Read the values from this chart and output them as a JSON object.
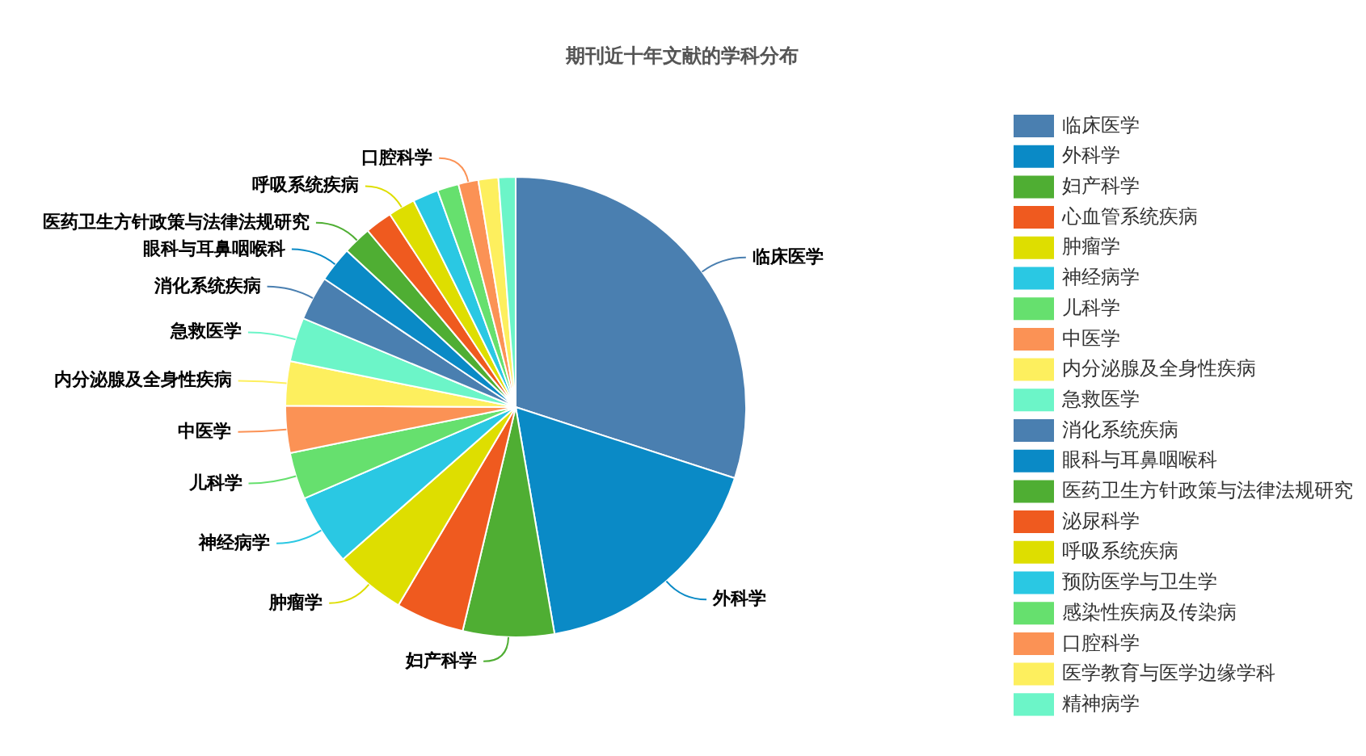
{
  "chart_data": {
    "type": "pie",
    "title": "期刊近十年文献的学科分布",
    "categories": [
      "临床医学",
      "外科学",
      "妇产科学",
      "心血管系统疾病",
      "肿瘤学",
      "神经病学",
      "儿科学",
      "中医学",
      "内分泌腺及全身性疾病",
      "急救医学",
      "消化系统疾病",
      "眼科与耳鼻咽喉科",
      "医药卫生方针政策与法律法规研究",
      "泌尿科学",
      "呼吸系统疾病",
      "预防医学与卫生学",
      "感染性疾病及传染病",
      "口腔科学",
      "医学教育与医学边缘学科",
      "精神病学"
    ],
    "values": [
      30,
      17.3,
      6.4,
      4.8,
      5,
      5,
      3.3,
      3.3,
      3.1,
      3.1,
      3.1,
      2.5,
      2,
      1.9,
      1.9,
      1.8,
      1.5,
      1.4,
      1.4,
      1.2
    ],
    "colors": [
      "#4a7fb0",
      "#0a8ac6",
      "#4fae33",
      "#ef5a1f",
      "#dede00",
      "#2ac8e3",
      "#66e06e",
      "#fb9255",
      "#fdef5e",
      "#6cf5c8",
      "#4a7fb0",
      "#0a8ac6",
      "#4fae33",
      "#ef5a1f",
      "#dede00",
      "#2ac8e3",
      "#66e06e",
      "#fb9255",
      "#fdef5e",
      "#6cf5c8"
    ],
    "legend": "right"
  }
}
